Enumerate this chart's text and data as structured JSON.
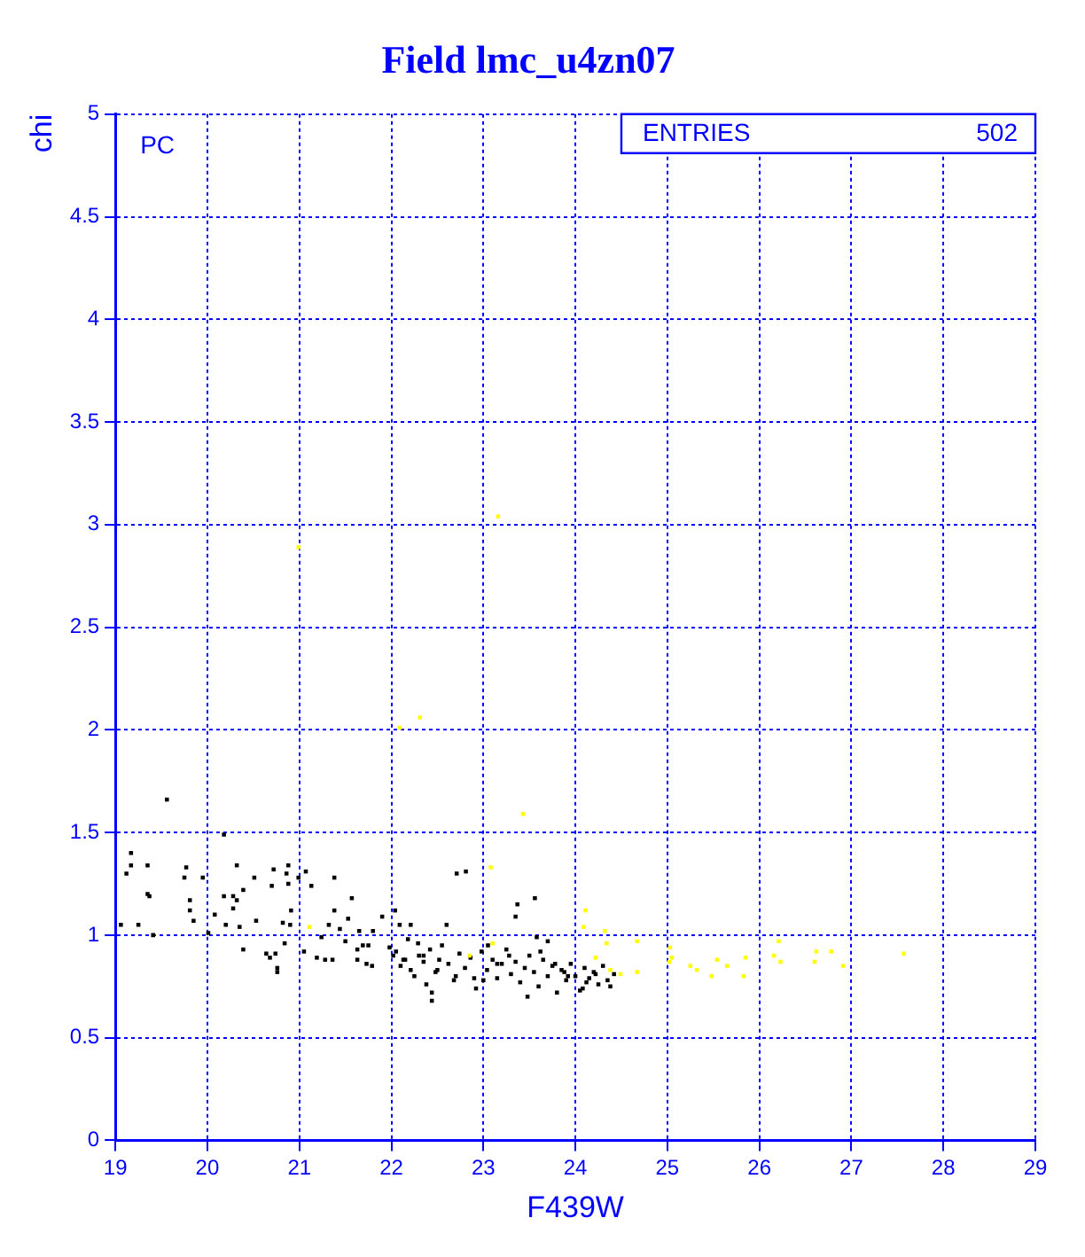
{
  "chart_data": {
    "type": "scatter",
    "title": "Field lmc_u4zn07",
    "xlabel": "F439W",
    "ylabel": "chi",
    "xlim": [
      19,
      29
    ],
    "ylim": [
      0,
      5
    ],
    "xticks": [
      19,
      20,
      21,
      22,
      23,
      24,
      25,
      26,
      27,
      28,
      29
    ],
    "yticks": [
      0,
      0.5,
      1,
      1.5,
      2,
      2.5,
      3,
      3.5,
      4,
      4.5,
      5
    ],
    "grid": true,
    "marker": "square",
    "annotations": [
      "PC",
      "ENTRIES",
      "502"
    ],
    "series": [
      {
        "color": "#000000",
        "x": [
          19.12,
          19.17,
          19.17,
          19.37,
          19.56,
          19.35,
          19.35,
          19.41,
          19.06,
          19.25,
          19.77,
          19.75,
          19.95,
          19.81,
          19.81,
          19.85,
          20.18,
          20.32,
          20.18,
          20.28,
          20.32,
          20.28,
          20.08,
          20.2,
          20.35,
          20.01,
          20.39,
          20.51,
          20.53,
          20.39,
          20.72,
          20.7,
          20.88,
          20.86,
          20.88,
          20.91,
          20.82,
          20.9,
          20.64,
          20.74,
          20.68,
          20.76,
          20.76,
          20.84,
          20.99,
          21.07,
          21.13,
          21.38,
          21.38,
          21.57,
          21.32,
          21.24,
          21.05,
          21.19,
          21.28,
          21.36,
          21.44,
          21.5,
          21.53,
          21.65,
          21.63,
          21.69,
          21.75,
          21.8,
          21.73,
          21.79,
          21.63,
          22.04,
          21.9,
          22.09,
          22.21,
          22.29,
          22.21,
          22.38,
          22.44,
          22.44,
          22.52,
          21.98,
          22.02,
          22.13,
          22.6,
          22.71,
          22.81,
          23.56,
          23.37,
          23.35,
          22.05,
          22.1,
          22.18,
          22.25,
          22.3,
          22.35,
          22.42,
          22.48,
          22.55,
          22.62,
          22.68,
          22.74,
          22.8,
          22.86,
          22.92,
          22.98,
          23.04,
          23.1,
          23.15,
          23.2,
          23.25,
          23.3,
          23.35,
          23.4,
          23.45,
          23.5,
          23.55,
          23.6,
          23.65,
          23.7,
          23.75,
          23.8,
          23.85,
          23.9,
          23.95,
          24.0,
          24.05,
          24.1,
          24.15,
          24.2,
          24.25,
          24.3,
          24.35,
          24.42,
          22.15,
          22.5,
          22.9,
          23.05,
          23.28,
          23.48,
          23.62,
          23.78,
          23.92,
          24.08,
          24.22,
          24.38,
          22.7,
          23.15,
          23.58,
          23.88,
          24.12,
          22.35,
          23.0,
          23.7
        ],
        "values": [
          1.3,
          1.4,
          1.34,
          1.19,
          1.66,
          1.34,
          1.2,
          1.0,
          1.05,
          1.05,
          1.33,
          1.28,
          1.28,
          1.17,
          1.12,
          1.07,
          1.49,
          1.34,
          1.19,
          1.19,
          1.17,
          1.13,
          1.1,
          1.05,
          1.04,
          1.01,
          1.22,
          1.28,
          1.07,
          0.93,
          1.32,
          1.24,
          1.34,
          1.3,
          1.25,
          1.12,
          1.06,
          1.05,
          0.91,
          0.91,
          0.89,
          0.84,
          0.82,
          0.96,
          1.28,
          1.31,
          1.24,
          1.28,
          1.12,
          1.18,
          1.05,
          0.99,
          0.92,
          0.89,
          0.88,
          0.88,
          1.03,
          0.97,
          1.08,
          1.02,
          0.93,
          0.95,
          0.95,
          1.02,
          0.86,
          0.85,
          0.88,
          1.12,
          1.09,
          1.05,
          1.05,
          0.96,
          0.83,
          0.76,
          0.68,
          0.72,
          0.88,
          0.94,
          0.9,
          0.88,
          1.05,
          1.3,
          1.31,
          1.18,
          1.15,
          1.09,
          0.92,
          0.85,
          0.98,
          0.8,
          0.9,
          0.87,
          0.93,
          0.82,
          0.95,
          0.86,
          0.78,
          0.91,
          0.84,
          0.89,
          0.74,
          0.92,
          0.83,
          0.88,
          0.79,
          0.86,
          0.93,
          0.81,
          0.87,
          0.77,
          0.84,
          0.9,
          0.82,
          0.75,
          0.88,
          0.8,
          0.85,
          0.72,
          0.83,
          0.78,
          0.86,
          0.8,
          0.73,
          0.84,
          0.79,
          0.82,
          0.76,
          0.85,
          0.78,
          0.81,
          0.88,
          0.83,
          0.79,
          0.95,
          0.9,
          0.7,
          0.92,
          0.86,
          0.8,
          0.74,
          0.81,
          0.75,
          0.8,
          0.86,
          0.99,
          0.82,
          0.77,
          0.9,
          0.78,
          0.97
        ]
      },
      {
        "color": "#ffff00",
        "x": [
          20.99,
          23.16,
          22.09,
          22.31,
          23.43,
          21.11,
          23.08,
          24.11,
          24.09,
          24.32,
          24.34,
          24.67,
          24.22,
          24.38,
          24.49,
          24.67,
          25.03,
          25.05,
          25.02,
          25.25,
          25.32,
          23.1,
          22.85,
          25.48,
          25.65,
          25.54,
          25.83,
          25.85,
          26.21,
          26.16,
          26.23,
          26.62,
          26.6,
          26.78,
          26.91,
          27.57
        ],
        "values": [
          2.89,
          3.04,
          2.01,
          2.06,
          1.59,
          1.04,
          1.33,
          1.12,
          1.04,
          1.02,
          0.96,
          0.97,
          0.89,
          0.83,
          0.81,
          0.82,
          0.94,
          0.89,
          0.87,
          0.85,
          0.83,
          0.96,
          0.9,
          0.8,
          0.85,
          0.88,
          0.8,
          0.89,
          0.97,
          0.9,
          0.87,
          0.92,
          0.87,
          0.92,
          0.85,
          0.91
        ]
      }
    ]
  }
}
